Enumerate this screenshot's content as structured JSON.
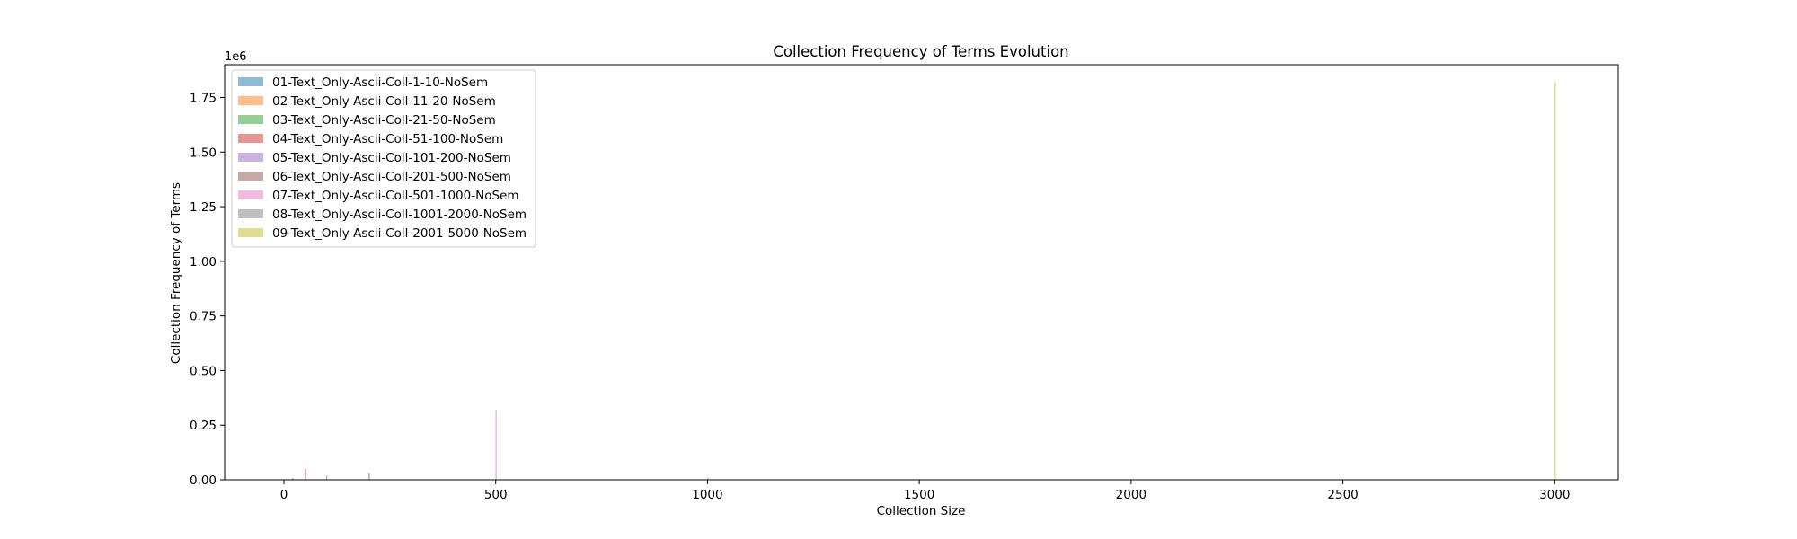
{
  "chart_data": {
    "type": "bar",
    "title": "Collection Frequency of Terms Evolution",
    "xlabel": "Collection Size",
    "ylabel": "Collection Frequency of Terms",
    "y_offset_label": "1e6",
    "xlim": [
      -140,
      3150
    ],
    "ylim": [
      0,
      1.9
    ],
    "x_ticks": [
      0,
      500,
      1000,
      1500,
      2000,
      2500,
      3000
    ],
    "x_tick_labels": [
      "0",
      "500",
      "1000",
      "1500",
      "2000",
      "2500",
      "3000"
    ],
    "y_ticks": [
      0,
      0.25,
      0.5,
      0.75,
      1.0,
      1.25,
      1.5,
      1.75
    ],
    "y_tick_labels": [
      "0.00",
      "0.25",
      "0.50",
      "0.75",
      "1.00",
      "1.25",
      "1.50",
      "1.75"
    ],
    "grid": false,
    "legend_position": "top-left",
    "series": [
      {
        "name": "01-Text_Only-Ascii-Coll-1-10-NoSem",
        "color": "#1f77b4",
        "x": 1,
        "value": 0.002
      },
      {
        "name": "02-Text_Only-Ascii-Coll-11-20-NoSem",
        "color": "#ff7f0e",
        "x": 11,
        "value": 0.004
      },
      {
        "name": "03-Text_Only-Ascii-Coll-21-50-NoSem",
        "color": "#2ca02c",
        "x": 21,
        "value": 0.008
      },
      {
        "name": "04-Text_Only-Ascii-Coll-51-100-NoSem",
        "color": "#d62728",
        "x": 51,
        "value": 0.05
      },
      {
        "name": "05-Text_Only-Ascii-Coll-101-200-NoSem",
        "color": "#9467bd",
        "x": 101,
        "value": 0.02
      },
      {
        "name": "06-Text_Only-Ascii-Coll-201-500-NoSem",
        "color": "#8c564b",
        "x": 201,
        "value": 0.03
      },
      {
        "name": "07-Text_Only-Ascii-Coll-501-1000-NoSem",
        "color": "#e377c2",
        "x": 501,
        "value": 0.32
      },
      {
        "name": "08-Text_Only-Ascii-Coll-1001-2000-NoSem",
        "color": "#7f7f7f",
        "x": 1001,
        "value": 0.01
      },
      {
        "name": "09-Text_Only-Ascii-Coll-2001-5000-NoSem",
        "color": "#bcbd22",
        "x": 3001,
        "value": 1.82
      }
    ]
  }
}
